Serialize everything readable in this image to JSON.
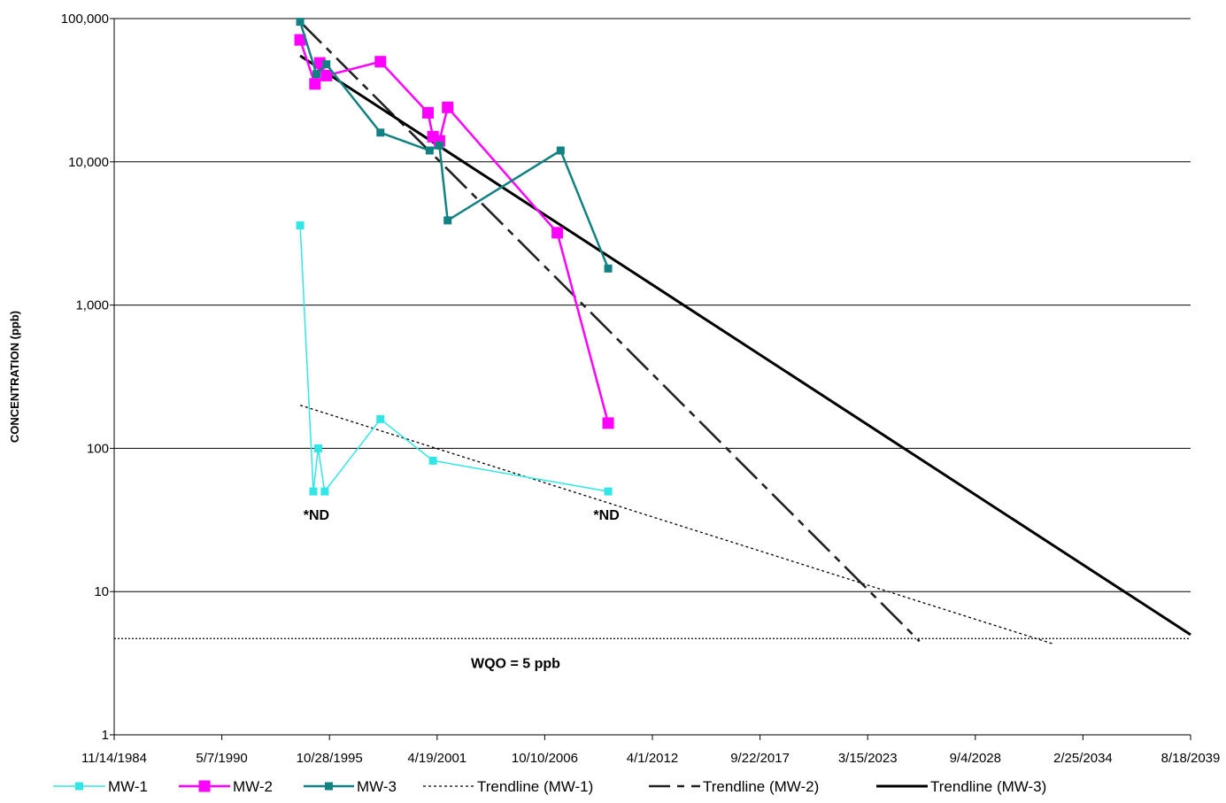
{
  "chart_data": {
    "type": "line",
    "title": "",
    "xlabel": "",
    "ylabel": "CONCENTRATION (ppb)",
    "y_scale": "log",
    "ylim": [
      1,
      100000
    ],
    "xlim": [
      "1984-11-14",
      "2039-08-18"
    ],
    "y_ticks": [
      "1",
      "10",
      "100",
      "1,000",
      "10,000",
      "100,000"
    ],
    "x_ticks": [
      "11/14/1984",
      "5/7/1990",
      "10/28/1995",
      "4/19/2001",
      "10/10/2006",
      "4/1/2012",
      "9/22/2017",
      "3/15/2023",
      "9/4/2028",
      "2/25/2034",
      "8/18/2039"
    ],
    "grid": "horizontal",
    "legend_position": "bottom",
    "colors": {
      "MW-1": "#33e6e6",
      "MW-2": "#ff00ff",
      "MW-3": "#138181",
      "trend": "#000000",
      "wqo": "#000000"
    },
    "series": [
      {
        "name": "MW-1",
        "marker": "square-small",
        "points": [
          [
            "1994-05-01",
            3600
          ],
          [
            "1995-01-01",
            50
          ],
          [
            "1995-04-01",
            100
          ],
          [
            "1995-08-01",
            50
          ],
          [
            "1998-06-01",
            160
          ],
          [
            "2001-02-01",
            82
          ],
          [
            "2010-01-01",
            50
          ]
        ]
      },
      {
        "name": "MW-2",
        "marker": "square-large",
        "points": [
          [
            "1994-05-01",
            71000
          ],
          [
            "1995-02-01",
            35000
          ],
          [
            "1995-05-01",
            49000
          ],
          [
            "1995-09-01",
            40000
          ],
          [
            "1998-06-01",
            50000
          ],
          [
            "2000-11-01",
            22000
          ],
          [
            "2001-02-01",
            15000
          ],
          [
            "2001-06-01",
            14000
          ],
          [
            "2001-11-01",
            24000
          ],
          [
            "2007-06-01",
            3200
          ],
          [
            "2010-01-01",
            150
          ]
        ]
      },
      {
        "name": "MW-3",
        "marker": "square-small",
        "points": [
          [
            "1994-05-01",
            95000
          ],
          [
            "1995-03-01",
            41000
          ],
          [
            "1995-09-01",
            48000
          ],
          [
            "1998-06-01",
            16000
          ],
          [
            "2000-12-01",
            12000
          ],
          [
            "2001-06-01",
            13000
          ],
          [
            "2001-11-01",
            3900
          ],
          [
            "2007-08-01",
            12000
          ],
          [
            "2010-01-01",
            1800
          ]
        ]
      },
      {
        "name": "Trendline (MW-1)",
        "style": "dotted",
        "points": [
          [
            "1994-05-01",
            200
          ],
          [
            "2032-09-01",
            4.3
          ]
        ]
      },
      {
        "name": "Trendline (MW-2)",
        "style": "long-dash-short-dash",
        "points": [
          [
            "1994-05-01",
            95000
          ],
          [
            "2025-11-01",
            4.5
          ]
        ]
      },
      {
        "name": "Trendline (MW-3)",
        "style": "solid-thick",
        "points": [
          [
            "1994-05-01",
            55000
          ],
          [
            "2039-08-18",
            5
          ]
        ]
      }
    ],
    "reference_line": {
      "label": "WQO = 5 ppb",
      "value": 4.7,
      "style": "dotted"
    },
    "annotations": [
      {
        "text": "*ND",
        "x": "1995-04-01",
        "y": 50,
        "anchor": "below"
      },
      {
        "text": "*ND",
        "x": "2010-01-01",
        "y": 50,
        "anchor": "below"
      }
    ]
  }
}
